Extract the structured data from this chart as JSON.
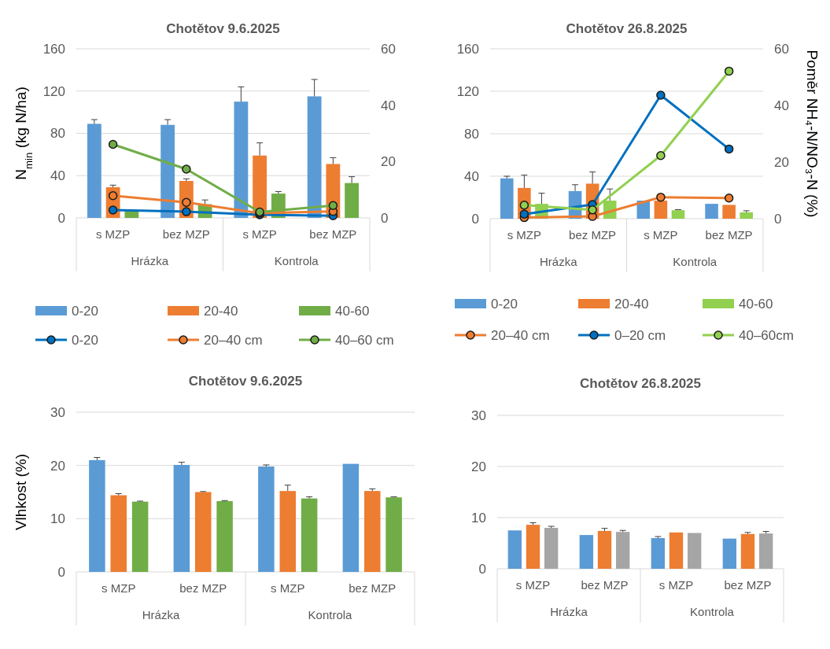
{
  "chart_data": [
    {
      "type": "bar",
      "title": "Chotětov 9.6.2025",
      "ylabel": "N$_{min}$ (kg N/ha)",
      "categories": [
        "s MZP",
        "bez MZP",
        "s MZP",
        "bez MZP"
      ],
      "annotations": [
        "Hrázka",
        "Kontrola"
      ],
      "ylim": [
        0,
        160
      ],
      "yticks": [
        0,
        40,
        80,
        120,
        160
      ],
      "y2lim": [
        0,
        60
      ],
      "y2ticks": [
        0,
        20,
        40,
        60
      ],
      "grid": "y",
      "legend": "bottom",
      "marker": "circle",
      "series": [
        {
          "name": "0-20",
          "type": "bar",
          "color": "#5b9bd5",
          "values": [
            89,
            88,
            110,
            115
          ],
          "errors": [
            [
              89,
              93
            ],
            [
              88,
              93
            ],
            [
              110,
              124
            ],
            [
              115,
              131
            ]
          ]
        },
        {
          "name": "20-40",
          "type": "bar",
          "color": "#ed7d31",
          "values": [
            29,
            35,
            59,
            51
          ],
          "errors": [
            [
              29,
              31
            ],
            [
              35,
              37
            ],
            [
              59,
              71
            ],
            [
              51,
              57
            ]
          ]
        },
        {
          "name": "40-60",
          "type": "bar",
          "color": "#70ad47",
          "values": [
            7,
            13,
            23,
            33
          ],
          "errors": [
            null,
            [
              13,
              17
            ],
            [
              23,
              25
            ],
            [
              33,
              39
            ]
          ]
        },
        {
          "name": "0-20",
          "type": "line",
          "axis": "y2",
          "color": "#0070c0",
          "values": [
            2.8,
            2.2,
            1.1,
            0.8
          ]
        },
        {
          "name": "20–40 cm",
          "type": "line",
          "axis": "y2",
          "color": "#ed7d31",
          "values": [
            7.9,
            5.5,
            1.7,
            2.3
          ]
        },
        {
          "name": "40–60 cm",
          "type": "line",
          "axis": "y2",
          "color": "#70ad47",
          "values": [
            26.1,
            17.3,
            2.1,
            4.4
          ]
        }
      ]
    },
    {
      "type": "bar",
      "title": "Chotětov 26.8.2025",
      "y2label": "Poměr NH₄-N/NO₃-N (%)",
      "categories": [
        "s MZP",
        "bez MZP",
        "s MZP",
        "bez MZP"
      ],
      "annotations": [
        "Hrázka",
        "Kontrola"
      ],
      "ylim": [
        0,
        160
      ],
      "yticks": [
        0,
        40,
        80,
        120,
        160
      ],
      "y2lim": [
        0,
        60
      ],
      "y2ticks": [
        0,
        20,
        40,
        60
      ],
      "grid": "y",
      "legend": "bottom",
      "marker": "circle",
      "series": [
        {
          "name": "0-20",
          "type": "bar",
          "color": "#5b9bd5",
          "values": [
            38,
            26,
            17,
            14
          ],
          "errors": [
            [
              38,
              40
            ],
            [
              26,
              32
            ],
            null,
            null
          ]
        },
        {
          "name": "20-40",
          "type": "bar",
          "color": "#ed7d31",
          "values": [
            29,
            33,
            17,
            13
          ],
          "errors": [
            [
              29,
              41
            ],
            [
              33,
              44
            ],
            null,
            null
          ]
        },
        {
          "name": "40-60",
          "type": "bar",
          "color": "#92d050",
          "values": [
            14,
            17,
            8,
            6
          ],
          "errors": [
            [
              14,
              24
            ],
            [
              17,
              28
            ],
            [
              8,
              8.5
            ],
            [
              6,
              7.5
            ]
          ]
        },
        {
          "name": "20–40 cm",
          "type": "line",
          "axis": "y2",
          "color": "#ed7d31",
          "values": [
            0.4,
            0.8,
            7.6,
            7.3
          ]
        },
        {
          "name": "0–20 cm",
          "type": "line",
          "axis": "y2",
          "color": "#0070c0",
          "values": [
            1.6,
            5.0,
            43.6,
            24.6
          ]
        },
        {
          "name": "40–60cm",
          "type": "line",
          "axis": "y2",
          "color": "#92d050",
          "values": [
            4.8,
            3.1,
            22.3,
            52.1
          ]
        }
      ]
    },
    {
      "type": "bar",
      "title": "Chotětov 9.6.2025",
      "ylabel": "Vlhkost (%)",
      "categories": [
        "s MZP",
        "bez MZP",
        "s MZP",
        "bez MZP"
      ],
      "annotations": [
        "Hrázka",
        "Kontrola"
      ],
      "ylim": [
        0,
        30
      ],
      "yticks": [
        0,
        10,
        20,
        30
      ],
      "grid": "y",
      "series": [
        {
          "type": "bar",
          "color": "#5b9bd5",
          "values": [
            21.0,
            20.1,
            19.8,
            20.3
          ],
          "errors": [
            [
              21.0,
              21.5
            ],
            [
              20.1,
              20.6
            ],
            [
              19.8,
              20.1
            ],
            null
          ]
        },
        {
          "type": "bar",
          "color": "#ed7d31",
          "values": [
            14.4,
            15.0,
            15.2,
            15.2
          ],
          "errors": [
            [
              14.4,
              14.7
            ],
            [
              15.0,
              15.1
            ],
            [
              15.2,
              16.3
            ],
            [
              15.2,
              15.6
            ]
          ]
        },
        {
          "type": "bar",
          "color": "#70ad47",
          "values": [
            13.2,
            13.3,
            13.8,
            14.0
          ],
          "errors": [
            [
              13.2,
              13.3
            ],
            [
              13.3,
              13.4
            ],
            [
              13.8,
              14.1
            ],
            [
              14.0,
              14.1
            ]
          ]
        }
      ]
    },
    {
      "type": "bar",
      "title": "Chotětov 26.8.2025",
      "categories": [
        "s MZP",
        "bez MZP",
        "s MZP",
        "bez MZP"
      ],
      "annotations": [
        "Hrázka",
        "Kontrola"
      ],
      "ylim": [
        0,
        30
      ],
      "yticks": [
        0,
        10,
        20,
        30
      ],
      "grid": "y",
      "series": [
        {
          "type": "bar",
          "color": "#5b9bd5",
          "values": [
            7.5,
            6.6,
            6.0,
            5.9
          ],
          "errors": [
            null,
            null,
            [
              6.0,
              6.3
            ],
            null
          ]
        },
        {
          "type": "bar",
          "color": "#ed7d31",
          "values": [
            8.6,
            7.4,
            7.1,
            6.8
          ],
          "errors": [
            [
              8.6,
              9.0
            ],
            [
              7.4,
              7.9
            ],
            null,
            [
              6.8,
              7.1
            ]
          ]
        },
        {
          "type": "bar",
          "color": "#a5a5a5",
          "values": [
            8.0,
            7.2,
            7.0,
            6.9
          ],
          "errors": [
            [
              8.0,
              8.3
            ],
            [
              7.2,
              7.5
            ],
            null,
            [
              6.9,
              7.3
            ]
          ]
        }
      ]
    }
  ]
}
